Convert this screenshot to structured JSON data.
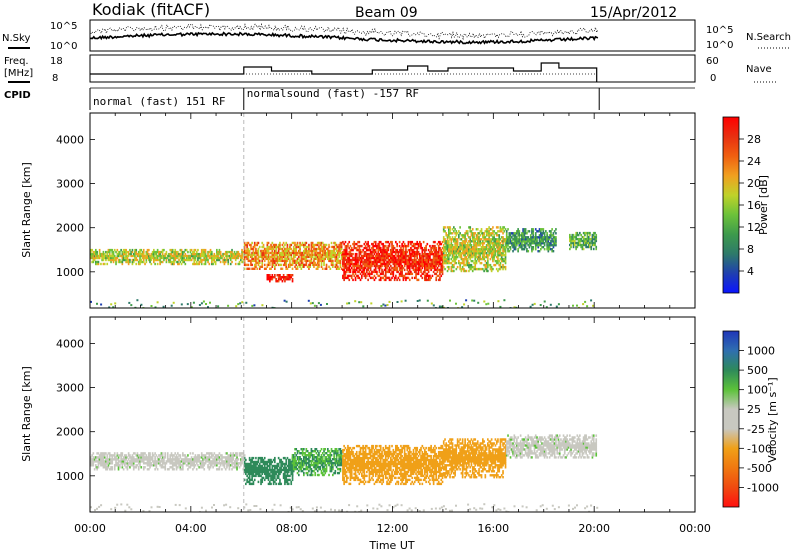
{
  "header": {
    "station": "Kodiak (fitACF)",
    "beam": "Beam 09",
    "date": "15/Apr/2012"
  },
  "top_panels": {
    "nsky_label": "N.Sky",
    "nsky_ticks": [
      "10^5",
      "10^0"
    ],
    "nsearch_label": "N.Search",
    "nsearch_ticks": [
      "10^5",
      "10^0"
    ],
    "freq_label_line1": "Freq.",
    "freq_label_line2": "[MHz]",
    "freq_ticks": [
      "18",
      "8"
    ],
    "nave_label": "Nave",
    "nave_ticks": [
      "60",
      "0"
    ],
    "cpid_label": "CPID",
    "cpid_segments": [
      {
        "start_hour": 0.0,
        "end_hour": 6.1,
        "label": "normal (fast) 151 RF"
      },
      {
        "start_hour": 6.1,
        "end_hour": 20.2,
        "label": "normalsound (fast) -157 RF"
      }
    ]
  },
  "colorbars": {
    "power": {
      "title": "Power [dB]",
      "ticks": [
        "4",
        "8",
        "12",
        "16",
        "20",
        "24",
        "28"
      ],
      "colors": [
        "#0a14ff",
        "#1f3fb0",
        "#2e7a6a",
        "#3d9a4c",
        "#6cc23a",
        "#bfd22a",
        "#f0a020",
        "#f06010",
        "#e83010",
        "#ff0000"
      ]
    },
    "velocity": {
      "title": "Velocity [m s⁻¹]",
      "ticks": [
        "1000",
        "500",
        "100",
        "25",
        "-25",
        "-100",
        "-500",
        "-1000"
      ],
      "colors": [
        "#1f36b8",
        "#2f6fb0",
        "#2e8a5a",
        "#5cc23a",
        "#c8c8c0",
        "#c8c8c0",
        "#f0a018",
        "#f07810",
        "#f04a10",
        "#ff1010"
      ]
    }
  },
  "axes": {
    "x_ticks": [
      "00:00",
      "04:00",
      "08:00",
      "12:00",
      "16:00",
      "20:00",
      "00:00"
    ],
    "x_label": "Time UT",
    "y_ticks": [
      "1000",
      "2000",
      "3000",
      "4000"
    ],
    "y_label": "Slant Range [km]"
  },
  "chart_data": [
    {
      "type": "heatmap",
      "title": "Power [dB]",
      "xlabel": "Time UT",
      "ylabel": "Slant Range [km]",
      "xlim_hours": [
        0,
        24
      ],
      "ylim_km": [
        180,
        4600
      ],
      "clim": [
        0,
        30
      ],
      "regions": [
        {
          "t0": 0.0,
          "t1": 6.1,
          "r_center": 1330,
          "r_halfwidth": 170,
          "value": 16
        },
        {
          "t0": 6.1,
          "t1": 10.0,
          "r_center": 1350,
          "r_halfwidth": 300,
          "value": 20
        },
        {
          "t0": 7.0,
          "t1": 8.0,
          "r_center": 850,
          "r_halfwidth": 80,
          "value": 28
        },
        {
          "t0": 10.0,
          "t1": 14.0,
          "r_center": 1250,
          "r_halfwidth": 450,
          "value": 26
        },
        {
          "t0": 14.0,
          "t1": 16.5,
          "r_center": 1500,
          "r_halfwidth": 500,
          "value": 16
        },
        {
          "t0": 16.5,
          "t1": 18.5,
          "r_center": 1700,
          "r_halfwidth": 250,
          "value": 10
        },
        {
          "t0": 19.0,
          "t1": 20.1,
          "r_center": 1700,
          "r_halfwidth": 200,
          "value": 12
        }
      ]
    },
    {
      "type": "heatmap",
      "title": "Velocity [m s⁻¹]",
      "xlabel": "Time UT",
      "ylabel": "Slant Range [km]",
      "xlim_hours": [
        0,
        24
      ],
      "ylim_km": [
        180,
        4600
      ],
      "regions": [
        {
          "t0": 0.0,
          "t1": 6.1,
          "r_center": 1330,
          "r_halfwidth": 200,
          "value": 0
        },
        {
          "t0": 6.1,
          "t1": 8.0,
          "r_center": 1100,
          "r_halfwidth": 300,
          "value": 120
        },
        {
          "t0": 8.0,
          "t1": 10.0,
          "r_center": 1300,
          "r_halfwidth": 300,
          "value": 60
        },
        {
          "t0": 10.0,
          "t1": 14.0,
          "r_center": 1250,
          "r_halfwidth": 450,
          "value": -150
        },
        {
          "t0": 14.0,
          "t1": 16.5,
          "r_center": 1400,
          "r_halfwidth": 450,
          "value": -120
        },
        {
          "t0": 16.5,
          "t1": 20.1,
          "r_center": 1650,
          "r_halfwidth": 250,
          "value": 0
        }
      ]
    }
  ]
}
